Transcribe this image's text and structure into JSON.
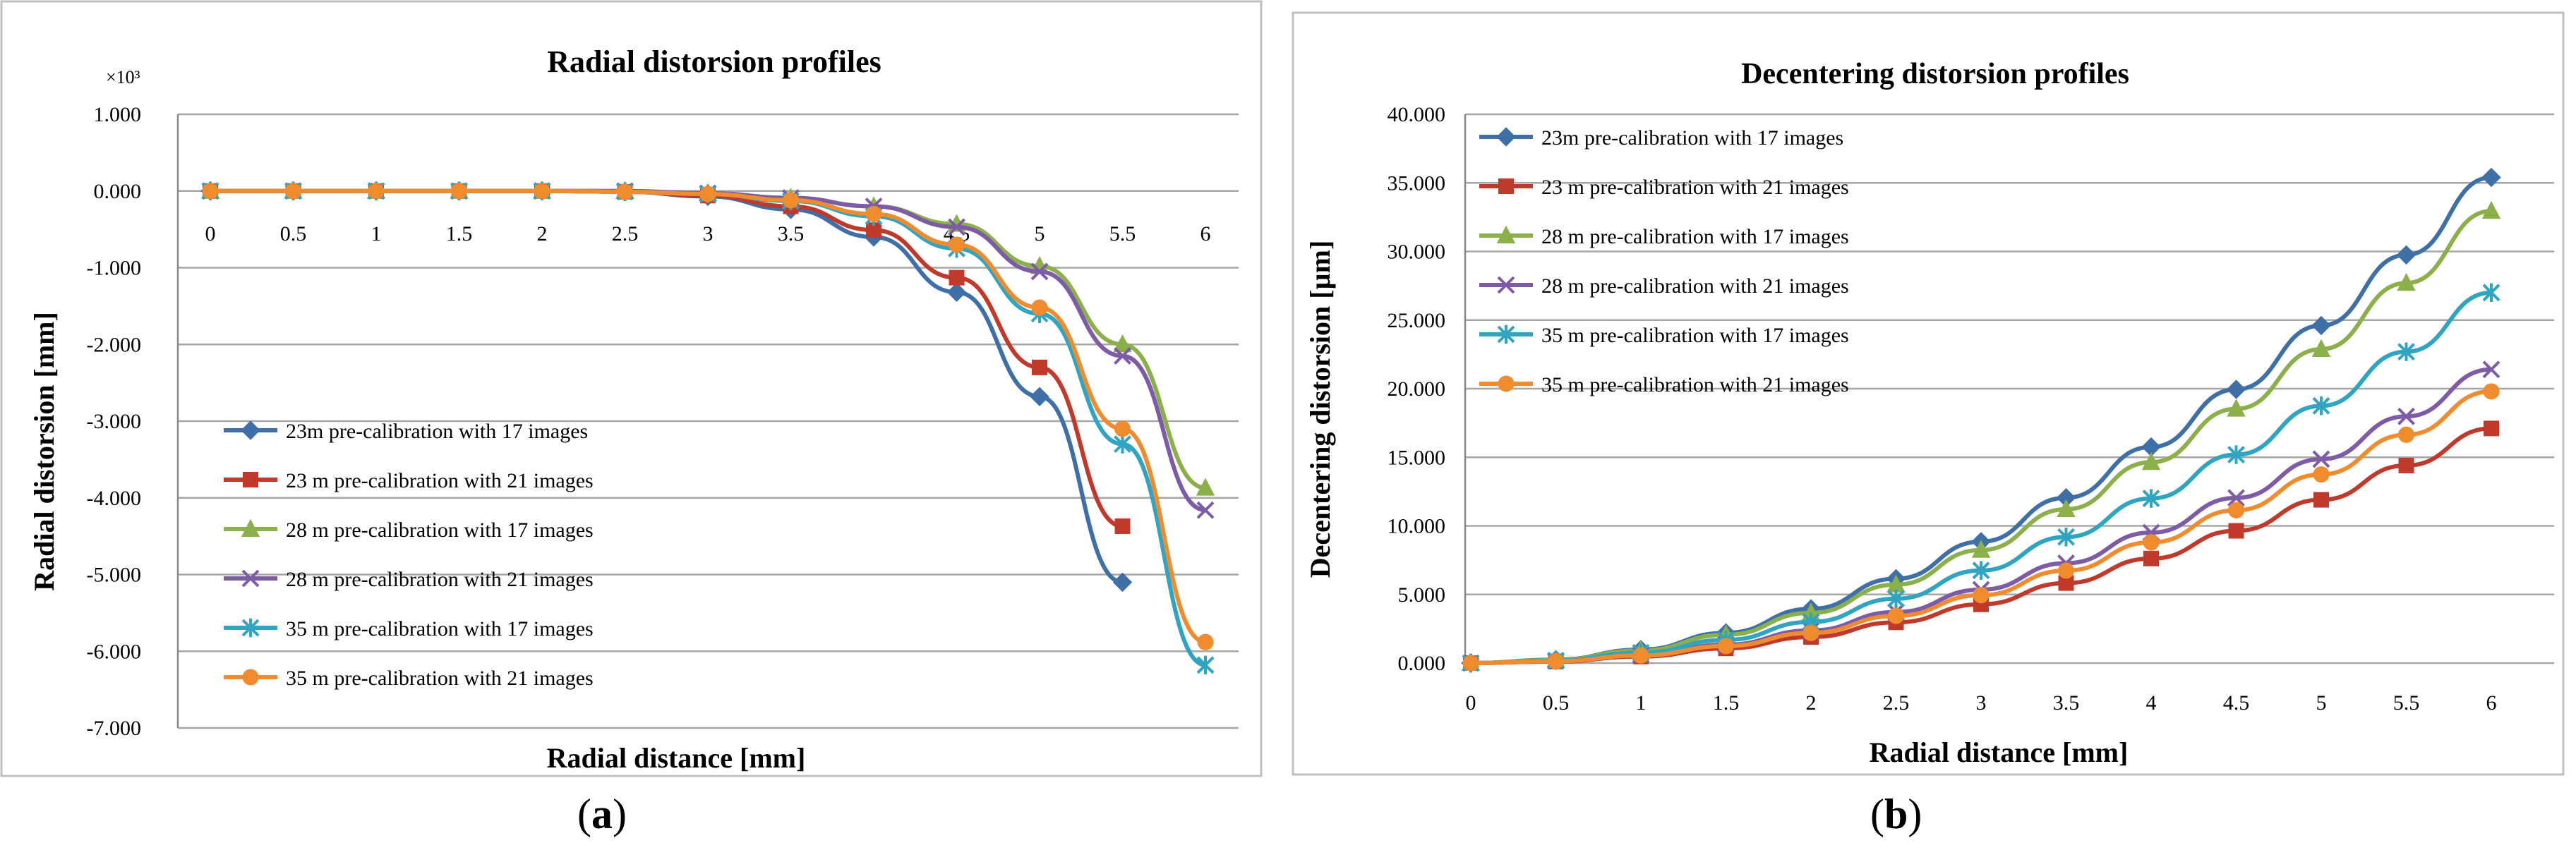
{
  "chart_data": [
    {
      "type": "line",
      "title": "Radial distorsion profiles",
      "xlabel": "Radial distance [mm]",
      "ylabel": "Radial distorsion [mm]",
      "y_multiplier": "×10³",
      "x": [
        0,
        0.5,
        1,
        1.5,
        2,
        2.5,
        3,
        3.5,
        4,
        4.5,
        5,
        5.5,
        6
      ],
      "x_ticks": [
        "0",
        "0.5",
        "1",
        "1.5",
        "2",
        "2.5",
        "3",
        "3.5",
        "4",
        "4.5",
        "5",
        "5.5",
        "6"
      ],
      "ylim": [
        -7,
        1
      ],
      "y_ticks": [
        1,
        0,
        -1,
        -2,
        -3,
        -4,
        -5,
        -6,
        -7
      ],
      "y_tick_labels": [
        "1.000",
        "0.000",
        "-1.000",
        "-2.000",
        "-3.000",
        "-4.000",
        "-5.000",
        "-6.000",
        "-7.000"
      ],
      "grid": true,
      "legend": "bottom-left",
      "series": [
        {
          "name": "23m pre-calibration with 17 images",
          "color": "#3E6FA6",
          "marker": "diamond",
          "values": [
            0,
            0,
            0,
            0,
            0,
            -0.01,
            -0.07,
            -0.24,
            -0.6,
            -1.32,
            -2.68,
            -5.1,
            null
          ]
        },
        {
          "name": "23 m pre-calibration with 21 images",
          "color": "#C0392B",
          "marker": "square",
          "values": [
            0,
            0,
            0,
            0,
            0,
            -0.01,
            -0.06,
            -0.2,
            -0.51,
            -1.13,
            -2.3,
            -4.37,
            null
          ]
        },
        {
          "name": "28 m pre-calibration with 17 images",
          "color": "#8BB04A",
          "marker": "triangle",
          "values": [
            0,
            0,
            0,
            0,
            0,
            0,
            -0.03,
            -0.09,
            -0.2,
            -0.43,
            -0.98,
            -2.0,
            -3.87
          ]
        },
        {
          "name": "28 m pre-calibration with 21 images",
          "color": "#7D5BA6",
          "marker": "x",
          "values": [
            0,
            0,
            0,
            0,
            0,
            0,
            -0.03,
            -0.09,
            -0.2,
            -0.47,
            -1.05,
            -2.15,
            -4.16
          ]
        },
        {
          "name": "35 m pre-calibration with 17 images",
          "color": "#2FA5C1",
          "marker": "star",
          "values": [
            0,
            0,
            0,
            0,
            0,
            -0.01,
            -0.04,
            -0.13,
            -0.33,
            -0.75,
            -1.6,
            -3.3,
            -6.18
          ]
        },
        {
          "name": "35 m pre-calibration with 21 images",
          "color": "#F08C2E",
          "marker": "circle",
          "values": [
            0,
            0,
            0,
            0,
            0,
            -0.01,
            -0.04,
            -0.12,
            -0.3,
            -0.7,
            -1.52,
            -3.1,
            -5.88
          ]
        }
      ]
    },
    {
      "type": "line",
      "title": "Decentering distorsion profiles",
      "xlabel": "Radial distance [mm]",
      "ylabel": "Decentering distorsion [µm]",
      "x": [
        0,
        0.5,
        1,
        1.5,
        2,
        2.5,
        3,
        3.5,
        4,
        4.5,
        5,
        5.5,
        6
      ],
      "x_ticks": [
        "0",
        "0.5",
        "1",
        "1.5",
        "2",
        "2.5",
        "3",
        "3.5",
        "4",
        "4.5",
        "5",
        "5.5",
        "6"
      ],
      "ylim": [
        0,
        40
      ],
      "y_ticks": [
        0,
        5,
        10,
        15,
        20,
        25,
        30,
        35,
        40
      ],
      "y_tick_labels": [
        "0.000",
        "5.000",
        "10.000",
        "15.000",
        "20.000",
        "25.000",
        "30.000",
        "35.000",
        "40.000"
      ],
      "grid": true,
      "legend": "top-left",
      "series": [
        {
          "name": "23m pre-calibration with 17 images",
          "color": "#3E6FA6",
          "marker": "diamond",
          "values": [
            0,
            0.25,
            0.98,
            2.2,
            3.95,
            6.15,
            8.85,
            12.05,
            15.75,
            19.95,
            24.6,
            29.75,
            35.4
          ]
        },
        {
          "name": "23 m pre-calibration with 21 images",
          "color": "#C0392B",
          "marker": "square",
          "values": [
            0,
            0.12,
            0.48,
            1.07,
            1.9,
            2.97,
            4.28,
            5.83,
            7.62,
            9.64,
            11.9,
            14.4,
            17.1
          ]
        },
        {
          "name": "28 m pre-calibration with 17 images",
          "color": "#8BB04A",
          "marker": "triangle",
          "values": [
            0,
            0.23,
            0.92,
            2.06,
            3.66,
            5.72,
            8.24,
            11.21,
            14.64,
            18.53,
            22.88,
            27.7,
            32.95
          ]
        },
        {
          "name": "28 m pre-calibration with 21 images",
          "color": "#7D5BA6",
          "marker": "x",
          "values": [
            0,
            0.15,
            0.6,
            1.34,
            2.38,
            3.72,
            5.35,
            7.28,
            9.51,
            12.04,
            14.86,
            17.98,
            21.4
          ]
        },
        {
          "name": "35 m pre-calibration with 17 images",
          "color": "#2FA5C1",
          "marker": "star",
          "values": [
            0,
            0.19,
            0.75,
            1.69,
            3.0,
            4.69,
            6.75,
            9.19,
            12.0,
            15.19,
            18.75,
            22.69,
            27.0
          ]
        },
        {
          "name": "35 m pre-calibration with 21 images",
          "color": "#F08C2E",
          "marker": "circle",
          "values": [
            0,
            0.14,
            0.55,
            1.24,
            2.2,
            3.44,
            4.95,
            6.74,
            8.8,
            11.14,
            13.75,
            16.64,
            19.8
          ]
        }
      ]
    }
  ],
  "panel_labels": [
    "(a)",
    "(b)"
  ]
}
